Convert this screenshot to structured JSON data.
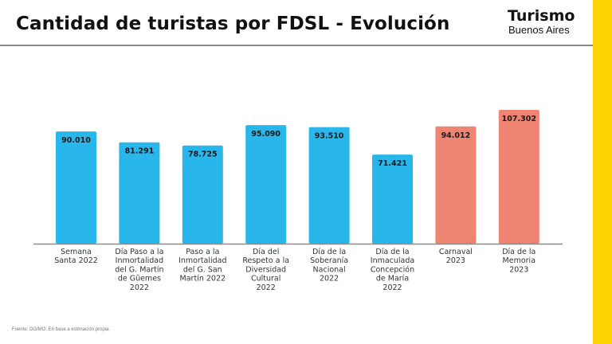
{
  "header": {
    "title": "Cantidad de turistas por FDSL - Evolución",
    "logo_line1": "Turismo",
    "logo_line2": "Buenos Aires"
  },
  "colors": {
    "series_2022": "#29B6EA",
    "series_2023": "#F08472",
    "accent_strip": "#FFD400",
    "axis": "#8a8a8a"
  },
  "footnote": "Fuente: DGIMO. En base a estimación propia.",
  "chart_data": {
    "type": "bar",
    "title": "Cantidad de turistas por FDSL - Evolución",
    "xlabel": "",
    "ylabel": "",
    "ylim": [
      0,
      110000
    ],
    "grid": false,
    "legend": "none",
    "categories": [
      [
        "Semana",
        "Santa 2022"
      ],
      [
        "Día Paso a la",
        "Inmortalidad",
        "del G. Martín",
        "de Güemes",
        "2022"
      ],
      [
        "Paso a la",
        "Inmortalidad",
        "del G. San",
        "Martín 2022"
      ],
      [
        "Día del",
        "Respeto a la",
        "Diversidad",
        "Cultural",
        "2022"
      ],
      [
        "Día de la",
        "Soberanía",
        "Nacional",
        "2022"
      ],
      [
        "Día de la",
        "Inmaculada",
        "Concepción",
        "de María",
        "2022"
      ],
      [
        "Carnaval",
        "2023"
      ],
      [
        "Día de la",
        "Memoria",
        "2023"
      ]
    ],
    "values": [
      90010,
      81291,
      78725,
      95090,
      93510,
      71421,
      94012,
      107302
    ],
    "value_labels": [
      "90.010",
      "81.291",
      "78.725",
      "95.090",
      "93.510",
      "71.421",
      "94.012",
      "107.302"
    ],
    "bar_group": [
      "2022",
      "2022",
      "2022",
      "2022",
      "2022",
      "2022",
      "2023",
      "2023"
    ]
  }
}
